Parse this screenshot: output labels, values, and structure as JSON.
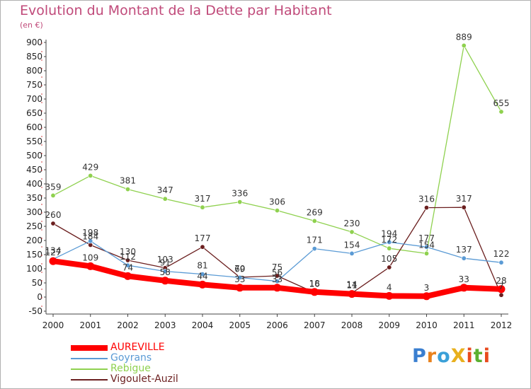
{
  "title": "Evolution du Montant de la Dette par Habitant",
  "unit": "(en €)",
  "logo": {
    "text": "ProXiti",
    "letters": [
      {
        "ch": "P",
        "color": "#3a7fd0"
      },
      {
        "ch": "r",
        "color": "#e8821e"
      },
      {
        "ch": "o",
        "color": "#3aa0d8"
      },
      {
        "ch": "X",
        "color": "#e8b01e"
      },
      {
        "ch": "i",
        "color": "#e84a1e"
      },
      {
        "ch": "t",
        "color": "#5ab030"
      },
      {
        "ch": "i",
        "color": "#e84a1e"
      }
    ]
  },
  "chart_data": {
    "type": "line",
    "title": "Evolution du Montant de la Dette par Habitant",
    "ylabel": "(en €)",
    "x": [
      "2000",
      "2001",
      "2002",
      "2003",
      "2004",
      "2005",
      "2006",
      "2007",
      "2008",
      "2009",
      "2010",
      "2011",
      "2012"
    ],
    "ylim": [
      -50,
      900
    ],
    "yticks": [
      -50,
      0,
      50,
      100,
      150,
      200,
      250,
      300,
      350,
      400,
      450,
      500,
      550,
      600,
      650,
      700,
      750,
      800,
      850,
      900
    ],
    "grid": false,
    "legend_position": "bottom-left",
    "series": [
      {
        "name": "AUREVILLE",
        "color": "#ff0000",
        "values": [
          127,
          109,
          74,
          58,
          44,
          33,
          33,
          18,
          11,
          4,
          3,
          33,
          28
        ],
        "labels": [
          "127",
          "109",
          "74",
          "58",
          "44",
          "33",
          "33",
          "18",
          "11",
          "4",
          "3",
          "33",
          "28"
        ]
      },
      {
        "name": "Goyrans",
        "color": "#5b9bd5",
        "values": [
          134,
          198,
          112,
          91,
          81,
          69,
          56,
          171,
          154,
          194,
          177,
          137,
          122
        ],
        "labels": [
          "134",
          "198",
          "112",
          "91",
          "81",
          "69",
          "56",
          "171",
          "154",
          "194",
          "177",
          "137",
          "122"
        ]
      },
      {
        "name": "Rebigue",
        "color": "#8fd14f",
        "values": [
          359,
          429,
          381,
          347,
          317,
          336,
          306,
          269,
          230,
          172,
          154,
          889,
          655
        ],
        "labels": [
          "359",
          "429",
          "381",
          "347",
          "317",
          "336",
          "306",
          "269",
          "230",
          "172",
          "154",
          "889",
          "655"
        ]
      },
      {
        "name": "Vigoulet-Auzil",
        "color": "#6b1f1f",
        "values": [
          260,
          184,
          130,
          103,
          177,
          70,
          75,
          16,
          14,
          105,
          316,
          317,
          7
        ],
        "labels": [
          "260",
          "184",
          "130",
          "103",
          "177",
          "70",
          "75",
          "16",
          "14",
          "105",
          "316",
          "317",
          "7"
        ]
      }
    ]
  }
}
